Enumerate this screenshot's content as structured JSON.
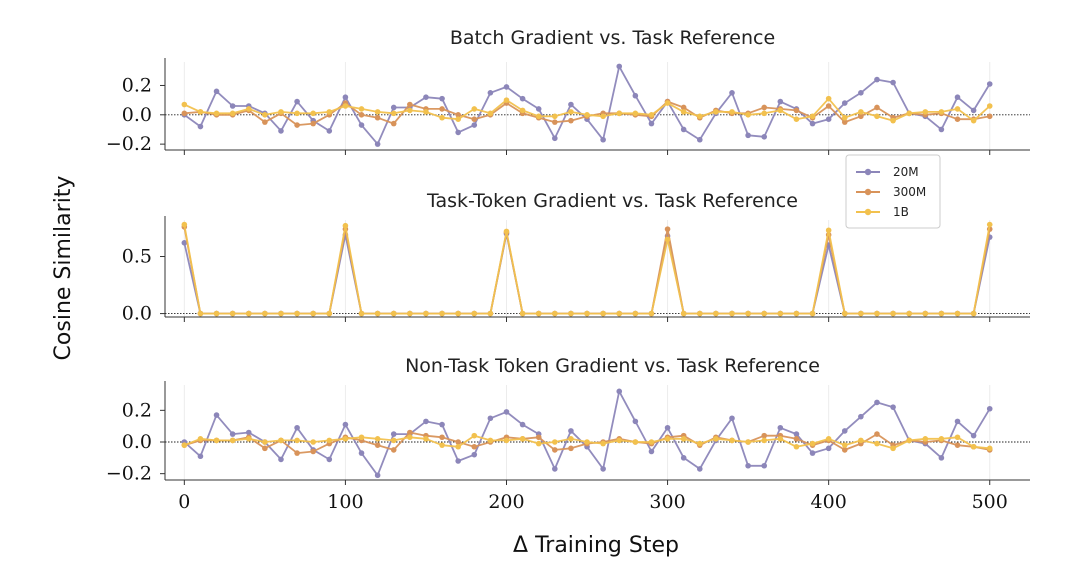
{
  "figure": {
    "ylabel": "Cosine Similarity",
    "xlabel": "Δ Training Step"
  },
  "legend": {
    "placement": "right, between top and middle panels",
    "entries": [
      "20M",
      "300M",
      "1B"
    ]
  },
  "chart_data": [
    {
      "type": "line",
      "title": "Batch Gradient vs. Task Reference",
      "xlabel": "",
      "ylabel": "",
      "xlim": [
        -12,
        525
      ],
      "ylim": [
        -0.24,
        0.36
      ],
      "yticks": [
        0.2,
        0.0,
        -0.2
      ],
      "ytick_labels": [
        "0.2",
        "0.0",
        "−0.2"
      ],
      "xticks": [
        0,
        100,
        200,
        300,
        400,
        500
      ],
      "xtick_labels": [],
      "grid": "x",
      "reference_line": 0.0,
      "x": [
        0,
        10,
        20,
        30,
        40,
        50,
        60,
        70,
        80,
        90,
        100,
        110,
        120,
        130,
        140,
        150,
        160,
        170,
        180,
        190,
        200,
        210,
        220,
        230,
        240,
        250,
        260,
        270,
        280,
        290,
        300,
        310,
        320,
        330,
        340,
        350,
        360,
        370,
        380,
        390,
        400,
        410,
        420,
        430,
        440,
        450,
        460,
        470,
        480,
        490,
        500
      ],
      "series": [
        {
          "name": "20M",
          "color": "#8c86b9",
          "values": [
            0.0,
            -0.08,
            0.16,
            0.06,
            0.06,
            0.01,
            -0.11,
            0.09,
            -0.04,
            -0.11,
            0.12,
            -0.07,
            -0.2,
            0.05,
            0.05,
            0.12,
            0.11,
            -0.12,
            -0.07,
            0.15,
            0.19,
            0.11,
            0.04,
            -0.16,
            0.07,
            -0.03,
            -0.17,
            0.33,
            0.13,
            -0.06,
            0.09,
            -0.1,
            -0.17,
            0.01,
            0.15,
            -0.14,
            -0.15,
            0.09,
            0.04,
            -0.06,
            -0.03,
            0.08,
            0.15,
            0.24,
            0.22,
            0.01,
            -0.01,
            -0.1,
            0.12,
            0.03,
            0.21
          ]
        },
        {
          "name": "300M",
          "color": "#d8935a",
          "values": [
            0.01,
            0.02,
            0.0,
            0.0,
            0.03,
            -0.05,
            0.01,
            -0.07,
            -0.06,
            0.0,
            0.08,
            0.0,
            -0.02,
            -0.06,
            0.07,
            0.04,
            0.04,
            0.0,
            -0.03,
            0.0,
            0.08,
            0.01,
            -0.02,
            -0.05,
            -0.04,
            -0.01,
            0.01,
            0.01,
            0.0,
            -0.01,
            0.09,
            0.05,
            -0.02,
            0.03,
            0.01,
            0.01,
            0.05,
            0.04,
            0.03,
            -0.02,
            0.06,
            -0.05,
            -0.01,
            0.05,
            -0.02,
            0.01,
            0.0,
            0.01,
            -0.03,
            -0.03,
            -0.01
          ]
        },
        {
          "name": "1B",
          "color": "#f2c14e",
          "values": [
            0.07,
            0.02,
            0.01,
            0.01,
            0.04,
            0.0,
            0.02,
            0.01,
            0.01,
            0.02,
            0.06,
            0.04,
            0.02,
            0.01,
            0.03,
            0.02,
            -0.02,
            -0.03,
            0.04,
            0.01,
            0.1,
            0.03,
            -0.01,
            -0.01,
            0.02,
            0.0,
            -0.01,
            0.01,
            0.01,
            0.0,
            0.08,
            0.02,
            -0.01,
            0.02,
            0.02,
            0.0,
            0.01,
            0.03,
            -0.03,
            -0.01,
            0.11,
            -0.02,
            0.02,
            -0.01,
            -0.04,
            0.01,
            0.02,
            0.02,
            0.04,
            -0.04,
            0.06
          ]
        }
      ]
    },
    {
      "type": "line",
      "title": "Task-Token Gradient vs. Task Reference",
      "xlabel": "",
      "ylabel": "",
      "xlim": [
        -12,
        525
      ],
      "ylim": [
        -0.03,
        0.82
      ],
      "yticks": [
        0.5,
        0.0
      ],
      "ytick_labels": [
        "0.5",
        "0.0"
      ],
      "xticks": [
        0,
        100,
        200,
        300,
        400,
        500
      ],
      "xtick_labels": [],
      "grid": "x",
      "reference_line": 0.0,
      "x": [
        0,
        10,
        20,
        30,
        40,
        50,
        60,
        70,
        80,
        90,
        100,
        110,
        120,
        130,
        140,
        150,
        160,
        170,
        180,
        190,
        200,
        210,
        220,
        230,
        240,
        250,
        260,
        270,
        280,
        290,
        300,
        310,
        320,
        330,
        340,
        350,
        360,
        370,
        380,
        390,
        400,
        410,
        420,
        430,
        440,
        450,
        460,
        470,
        480,
        490,
        500
      ],
      "series": [
        {
          "name": "20M",
          "color": "#8c86b9",
          "values": [
            0.62,
            0,
            0,
            0,
            0,
            0,
            0,
            0,
            0,
            0,
            0.69,
            0,
            0,
            0,
            0,
            0,
            0,
            0,
            0,
            0,
            0.7,
            0,
            0,
            0,
            0,
            0,
            0,
            0,
            0,
            0,
            0.68,
            0,
            0,
            0,
            0,
            0,
            0,
            0,
            0,
            0,
            0.6,
            0,
            0,
            0,
            0,
            0,
            0,
            0,
            0,
            0,
            0.67
          ]
        },
        {
          "name": "300M",
          "color": "#d8935a",
          "values": [
            0.76,
            0,
            0,
            0,
            0,
            0,
            0,
            0,
            0,
            0,
            0.74,
            0,
            0,
            0,
            0,
            0,
            0,
            0,
            0,
            0,
            0.71,
            0,
            0,
            0,
            0,
            0,
            0,
            0,
            0,
            0,
            0.74,
            0,
            0,
            0,
            0,
            0,
            0,
            0,
            0,
            0,
            0.69,
            0,
            0,
            0,
            0,
            0,
            0,
            0,
            0,
            0,
            0.74
          ]
        },
        {
          "name": "1B",
          "color": "#f2c14e",
          "values": [
            0.78,
            0,
            0,
            0,
            0,
            0,
            0,
            0,
            0,
            0,
            0.77,
            0,
            0,
            0,
            0,
            0,
            0,
            0,
            0,
            0,
            0.72,
            0,
            0,
            0,
            0,
            0,
            0,
            0,
            0,
            0,
            0.65,
            0,
            0,
            0,
            0,
            0,
            0,
            0,
            0,
            0,
            0.73,
            0,
            0,
            0,
            0,
            0,
            0,
            0,
            0,
            0,
            0.78
          ]
        }
      ]
    },
    {
      "type": "line",
      "title": "Non-Task Token Gradient vs. Task Reference",
      "xlabel": "Δ Training Step",
      "ylabel": "",
      "xlim": [
        -12,
        525
      ],
      "ylim": [
        -0.24,
        0.36
      ],
      "yticks": [
        0.2,
        0.0,
        -0.2
      ],
      "ytick_labels": [
        "0.2",
        "0.0",
        "−0.2"
      ],
      "xticks": [
        0,
        100,
        200,
        300,
        400,
        500
      ],
      "xtick_labels": [
        "0",
        "100",
        "200",
        "300",
        "400",
        "500"
      ],
      "grid": "x",
      "reference_line": 0.0,
      "x": [
        0,
        10,
        20,
        30,
        40,
        50,
        60,
        70,
        80,
        90,
        100,
        110,
        120,
        130,
        140,
        150,
        160,
        170,
        180,
        190,
        200,
        210,
        220,
        230,
        240,
        250,
        260,
        270,
        280,
        290,
        300,
        310,
        320,
        330,
        340,
        350,
        360,
        370,
        380,
        390,
        400,
        410,
        420,
        430,
        440,
        450,
        460,
        470,
        480,
        490,
        500
      ],
      "series": [
        {
          "name": "20M",
          "color": "#8c86b9",
          "values": [
            0.0,
            -0.09,
            0.17,
            0.05,
            0.06,
            0.0,
            -0.11,
            0.09,
            -0.05,
            -0.11,
            0.11,
            -0.07,
            -0.21,
            0.05,
            0.05,
            0.13,
            0.11,
            -0.12,
            -0.08,
            0.15,
            0.19,
            0.11,
            0.05,
            -0.17,
            0.07,
            -0.03,
            -0.17,
            0.32,
            0.13,
            -0.06,
            0.09,
            -0.1,
            -0.17,
            0.01,
            0.15,
            -0.15,
            -0.15,
            0.09,
            0.05,
            -0.07,
            -0.04,
            0.07,
            0.16,
            0.25,
            0.22,
            0.01,
            -0.01,
            -0.1,
            0.13,
            0.04,
            0.21
          ]
        },
        {
          "name": "300M",
          "color": "#d8935a",
          "values": [
            -0.02,
            0.01,
            0.01,
            0.01,
            0.03,
            -0.04,
            0.01,
            -0.07,
            -0.06,
            -0.01,
            0.03,
            0.01,
            -0.02,
            -0.05,
            0.06,
            0.04,
            0.03,
            0.0,
            -0.03,
            0.0,
            0.03,
            0.02,
            0.03,
            -0.05,
            -0.04,
            -0.01,
            0.0,
            0.02,
            0.0,
            -0.01,
            0.03,
            0.04,
            -0.02,
            0.03,
            0.01,
            0.0,
            0.04,
            0.04,
            0.02,
            -0.02,
            0.01,
            -0.05,
            -0.01,
            0.05,
            -0.02,
            0.01,
            0.0,
            0.01,
            -0.02,
            -0.03,
            -0.05
          ]
        },
        {
          "name": "1B",
          "color": "#f2c14e",
          "values": [
            -0.02,
            0.02,
            0.01,
            0.01,
            0.02,
            0.0,
            0.01,
            0.01,
            0.0,
            0.01,
            0.02,
            0.03,
            0.02,
            0.01,
            0.03,
            0.02,
            -0.02,
            -0.03,
            0.04,
            0.01,
            0.01,
            0.02,
            -0.01,
            0.0,
            0.02,
            0.0,
            -0.01,
            0.01,
            0.0,
            0.0,
            0.02,
            0.02,
            -0.01,
            0.02,
            0.01,
            0.0,
            0.01,
            0.02,
            -0.03,
            -0.01,
            0.02,
            -0.02,
            0.01,
            -0.01,
            -0.04,
            0.01,
            0.02,
            0.02,
            0.03,
            -0.03,
            -0.04
          ]
        }
      ]
    }
  ]
}
